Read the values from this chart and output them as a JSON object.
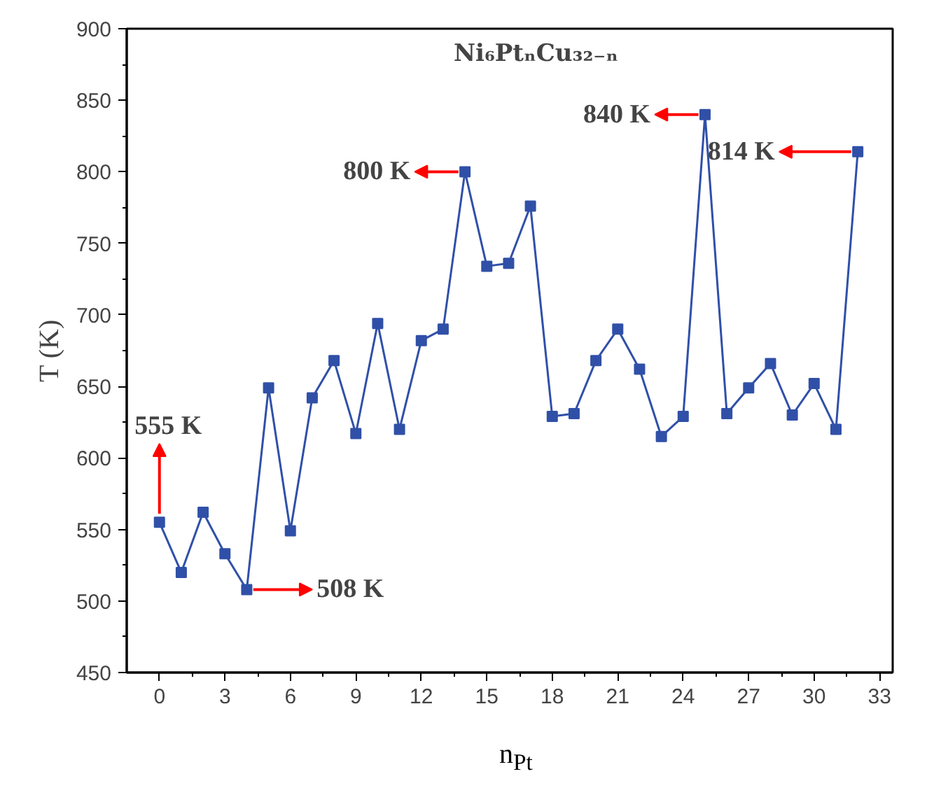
{
  "chart_data": {
    "type": "line",
    "title": "Ni₆PtₙCu₃₂₋ₙ",
    "xlabel": "n$_{Pt}$",
    "ylabel": "T (K)",
    "x": [
      0,
      1,
      2,
      3,
      4,
      5,
      6,
      7,
      8,
      9,
      10,
      11,
      12,
      13,
      14,
      15,
      16,
      17,
      18,
      19,
      20,
      21,
      22,
      23,
      24,
      25,
      26,
      27,
      28,
      29,
      30,
      31,
      32
    ],
    "series": [
      {
        "color": "#3050a8",
        "values": [
          555,
          520,
          562,
          533,
          508,
          649,
          549,
          642,
          668,
          617,
          694,
          620,
          682,
          690,
          800,
          734,
          736,
          776,
          629,
          631,
          668,
          690,
          662,
          615,
          629,
          840,
          631,
          649,
          666,
          630,
          652,
          620,
          814
        ]
      }
    ],
    "xlim": [
      -1.5,
      33.6
    ],
    "ylim": [
      450,
      900
    ],
    "xticks": [
      0,
      3,
      6,
      9,
      12,
      15,
      18,
      21,
      24,
      27,
      30,
      33
    ],
    "yticks": [
      450,
      500,
      550,
      600,
      650,
      700,
      750,
      800,
      850,
      900
    ],
    "marker": "square",
    "line_style": "solid",
    "grid": false,
    "annotations": [
      {
        "text": "555 K",
        "x": 0,
        "y": 555
      },
      {
        "text": "508 K",
        "x": 4,
        "y": 508
      },
      {
        "text": "800 K",
        "x": 14,
        "y": 800
      },
      {
        "text": "840 K",
        "x": 25,
        "y": 840
      },
      {
        "text": "814 K",
        "x": 32,
        "y": 814
      }
    ]
  }
}
